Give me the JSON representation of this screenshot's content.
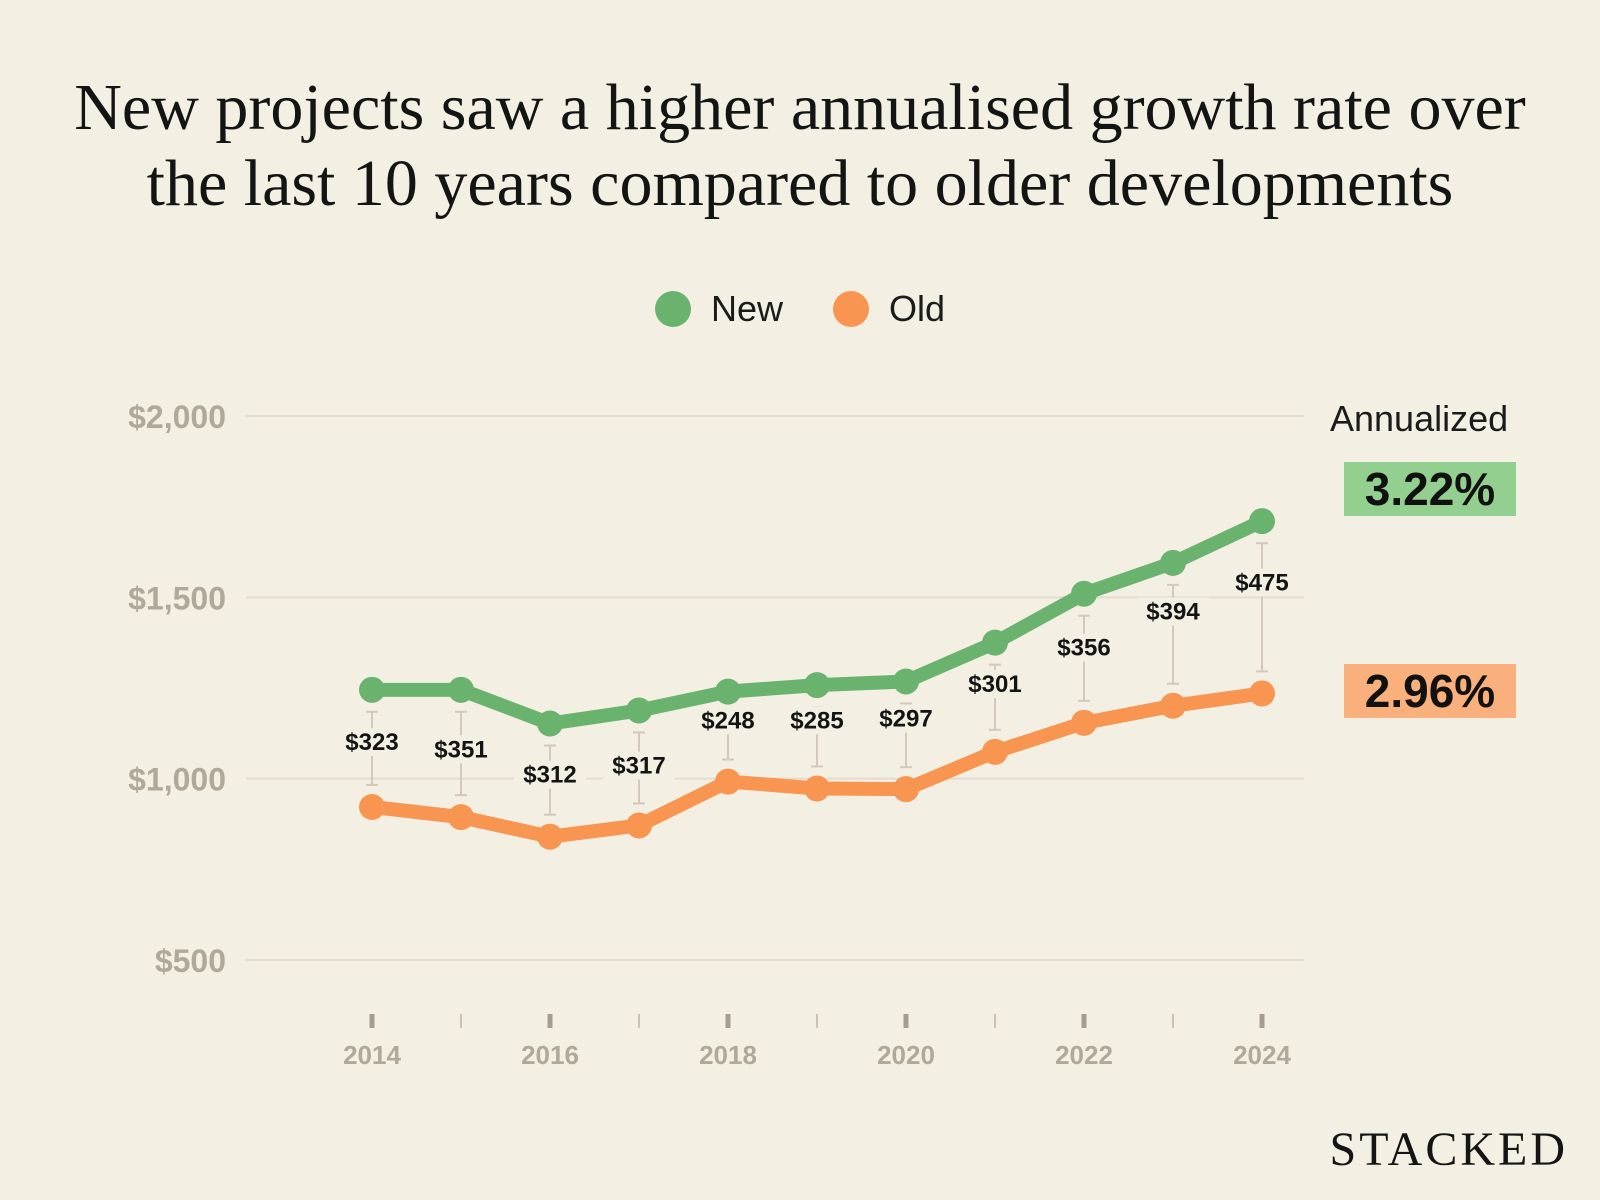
{
  "title_lines": [
    "New projects saw a higher annualised growth rate over",
    "the last 10 years compared to older developments"
  ],
  "legend": [
    {
      "label": "New",
      "color": "#6ab36e"
    },
    {
      "label": "Old",
      "color": "#f89550"
    }
  ],
  "annualized": {
    "label": "Annualized",
    "new": {
      "value": "3.22%",
      "bg": "#93d08f"
    },
    "old": {
      "value": "2.96%",
      "bg": "#f9b07c"
    }
  },
  "brand": "STACKED",
  "chart_data": {
    "type": "line",
    "title": "New projects saw a higher annualised growth rate over the last 10 years compared to older developments",
    "x": [
      2014,
      2015,
      2016,
      2017,
      2018,
      2019,
      2020,
      2021,
      2022,
      2023,
      2024
    ],
    "x_tick_labels": [
      "2014",
      "",
      "2016",
      "",
      "2018",
      "",
      "2020",
      "",
      "2022",
      "",
      "2024"
    ],
    "ylim": [
      500,
      2000
    ],
    "y_ticks": [
      {
        "value": 2000,
        "label": "$2,000"
      },
      {
        "value": 1500,
        "label": "$1,500"
      },
      {
        "value": 1000,
        "label": "$1,000"
      },
      {
        "value": 500,
        "label": "$500"
      }
    ],
    "grid": true,
    "series": [
      {
        "name": "New",
        "color": "#6ab36e",
        "values": [
          1245,
          1245,
          1152,
          1188,
          1240,
          1258,
          1268,
          1375,
          1510,
          1595,
          1710
        ]
      },
      {
        "name": "Old",
        "color": "#f89550",
        "values": [
          922,
          894,
          840,
          871,
          992,
          973,
          971,
          1074,
          1154,
          1201,
          1235
        ]
      }
    ],
    "gap_labels": [
      "$323",
      "$351",
      "$312",
      "$317",
      "$248",
      "$285",
      "$297",
      "$301",
      "$356",
      "$394",
      "$475"
    ],
    "gap_label_values": [
      1090,
      1070,
      1000,
      1025,
      1150,
      1150,
      1155,
      1250,
      1350,
      1450,
      1530
    ]
  }
}
